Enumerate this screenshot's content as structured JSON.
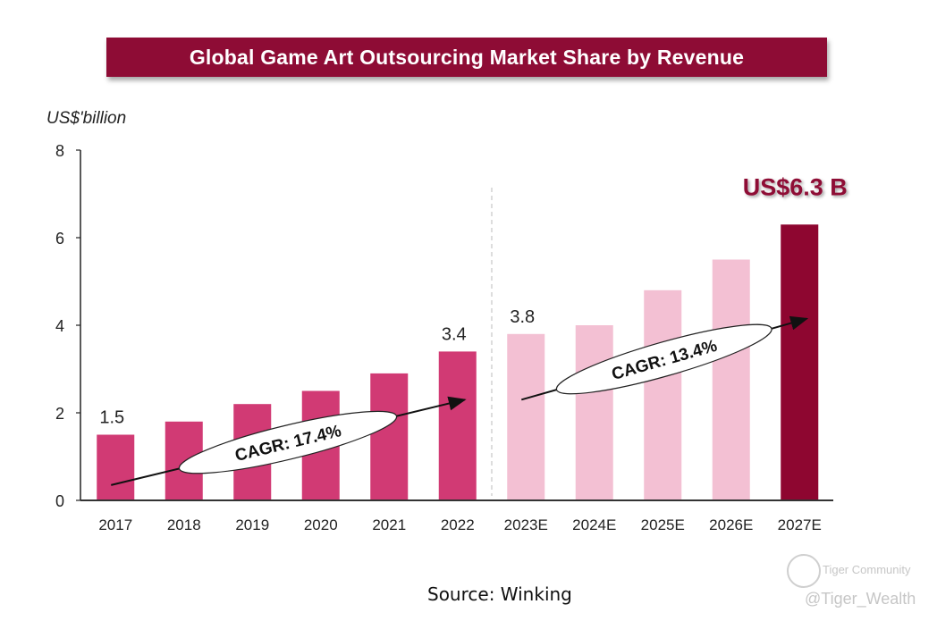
{
  "banner": {
    "title": "Global Game Art Outsourcing Market Share by Revenue"
  },
  "chart_data": {
    "type": "bar",
    "title": "Global Game Art Outsourcing Market Share by Revenue",
    "ylabel": "US$'billion",
    "xlabel": "",
    "ylim": [
      0,
      8
    ],
    "yticks": [
      0,
      2,
      4,
      6,
      8
    ],
    "grid": false,
    "categories": [
      "2017",
      "2018",
      "2019",
      "2020",
      "2021",
      "2022",
      "2023E",
      "2024E",
      "2025E",
      "2026E",
      "2027E"
    ],
    "values": [
      1.5,
      1.8,
      2.2,
      2.5,
      2.9,
      3.4,
      3.8,
      4.0,
      4.8,
      5.5,
      6.3
    ],
    "bar_colors": [
      "#d13a74",
      "#d13a74",
      "#d13a74",
      "#d13a74",
      "#d13a74",
      "#d13a74",
      "#f3c0d3",
      "#f3c0d3",
      "#f3c0d3",
      "#f3c0d3",
      "#8e0630"
    ],
    "data_labels": [
      {
        "category": "2017",
        "text": "1.5"
      },
      {
        "category": "2022",
        "text": "3.4"
      },
      {
        "category": "2023E",
        "text": "3.8"
      }
    ],
    "annotations": [
      {
        "text": "CAGR: 17.4%",
        "from": "2017",
        "to": "2022"
      },
      {
        "text": "CAGR: 13.4%",
        "from": "2023E",
        "to": "2027E"
      },
      {
        "text": "US$6.3 B",
        "category": "2027E",
        "color": "#8e0c35"
      }
    ],
    "divider_between": [
      "2022",
      "2023E"
    ]
  },
  "footer": {
    "source": "Source: Winking",
    "watermark_brand": "Tiger Community",
    "watermark_handle": "@Tiger_Wealth"
  }
}
